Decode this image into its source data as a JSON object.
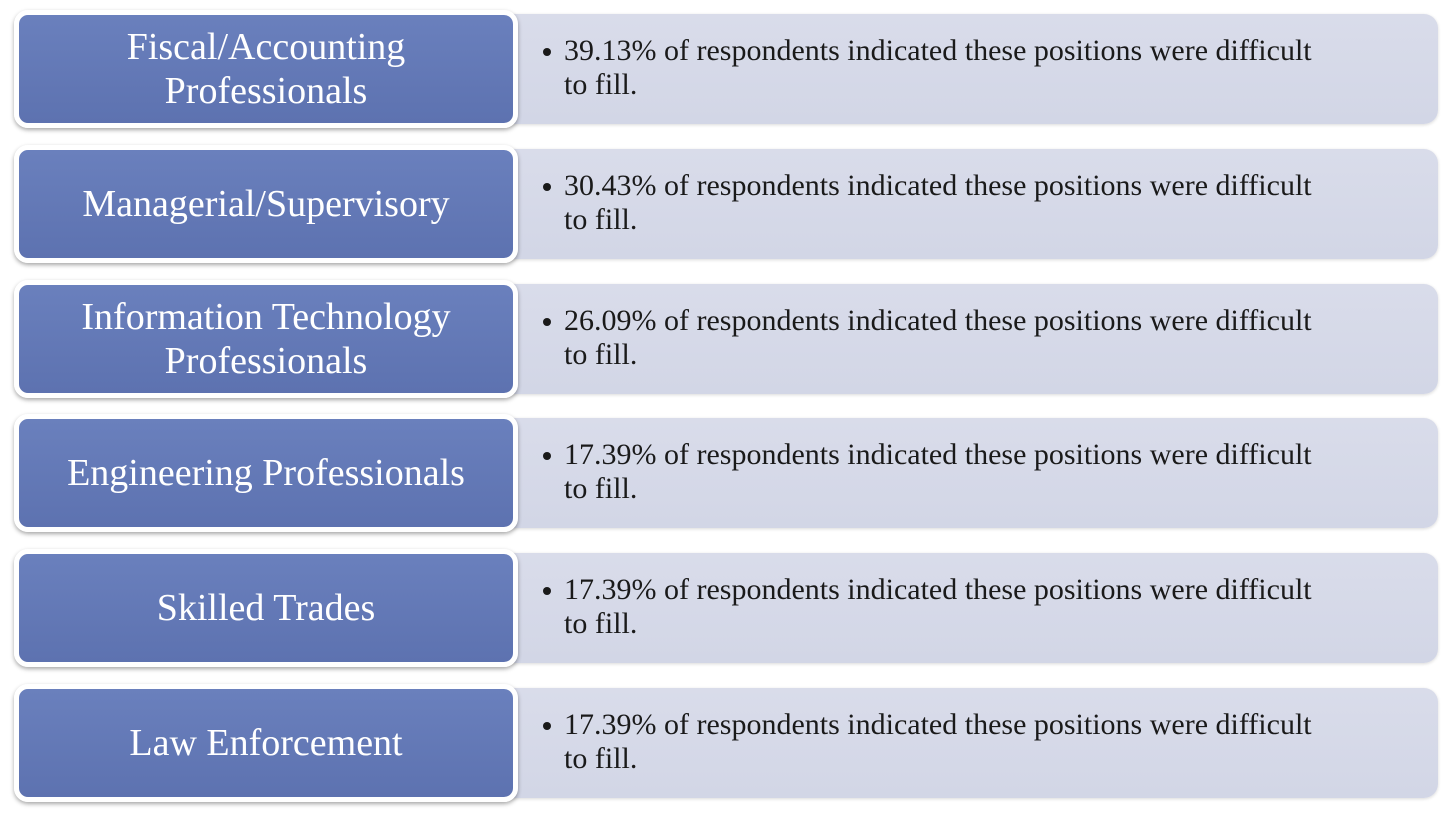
{
  "rows": [
    {
      "label": "Fiscal/Accounting Professionals",
      "text": "39.13% of respondents indicated these positions were difficult to fill."
    },
    {
      "label": "Managerial/Supervisory",
      "text": "30.43% of respondents indicated these positions were difficult to fill."
    },
    {
      "label": "Information Technology Professionals",
      "text": "26.09% of respondents indicated these positions were difficult to fill."
    },
    {
      "label": "Engineering Professionals",
      "text": "17.39% of respondents indicated these positions were difficult to fill."
    },
    {
      "label": "Skilled Trades",
      "text": "17.39% of respondents indicated these positions were difficult to fill."
    },
    {
      "label": "Law Enforcement",
      "text": "17.39% of respondents indicated these positions were difficult to fill."
    }
  ]
}
